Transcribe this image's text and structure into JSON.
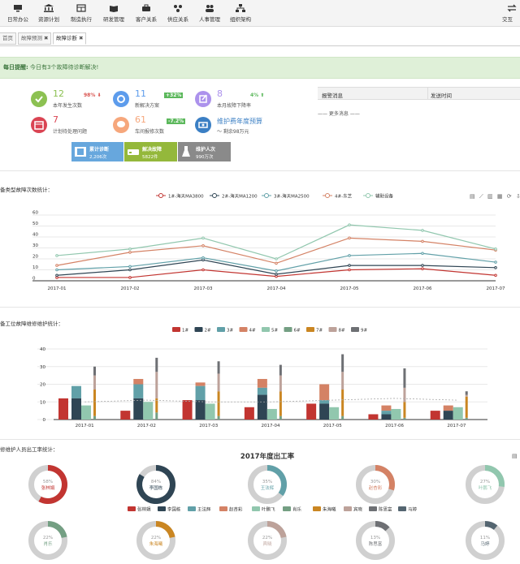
{
  "nav": [
    {
      "label": "日常办公",
      "icon": "monitor-icon"
    },
    {
      "label": "资源计划",
      "icon": "bank-icon"
    },
    {
      "label": "制造执行",
      "icon": "factory-icon"
    },
    {
      "label": "研发管理",
      "icon": "book-icon"
    },
    {
      "label": "客户关系",
      "icon": "briefcase-icon"
    },
    {
      "label": "供应关系",
      "icon": "network-icon"
    },
    {
      "label": "人事管理",
      "icon": "users-icon"
    },
    {
      "label": "组织架构",
      "icon": "org-chart-icon"
    },
    {
      "label": "交互",
      "icon": "swap-icon"
    }
  ],
  "tabs": [
    {
      "label": "首页",
      "closable": false
    },
    {
      "label": "故障预测",
      "closable": true
    },
    {
      "label": "故障诊断",
      "closable": true
    }
  ],
  "alert": {
    "prefix": "每日提醒:",
    "text": "今日有3个故障待诊断解决!"
  },
  "stats": [
    {
      "value": "12",
      "label": "本年发生次数",
      "badge": "98%",
      "badge_color": "#d9534f",
      "arrow": "down",
      "color": "#8cc152",
      "icon": "checklist-icon"
    },
    {
      "value": "11",
      "label": "新解决方案",
      "badge": "+32%",
      "badge_color": "#5cb85c",
      "arrow": "none",
      "color": "#5d9cec",
      "icon": "gears-icon"
    },
    {
      "value": "8",
      "label": "本月故障下降率",
      "badge": "4%",
      "badge_color": "#5cb85c",
      "arrow": "up",
      "color": "#ac92ec",
      "icon": "edit-icon"
    },
    {
      "value": "7",
      "label": "计划待处理问题",
      "badge": "",
      "badge_color": "",
      "arrow": "none",
      "color": "#da4453",
      "icon": "calendar-icon"
    },
    {
      "value": "61",
      "label": "车间报修次数",
      "badge": "-7.2%",
      "badge_color": "#5cb85c",
      "arrow": "none",
      "color": "#f6a77c",
      "icon": "chat-icon"
    },
    {
      "value": "维护费年度预算",
      "label": "～ 剩余98万元",
      "badge": "",
      "badge_color": "",
      "arrow": "none",
      "color": "#3b7fc4",
      "icon": "budget-icon"
    }
  ],
  "tiles": [
    {
      "title": "累计诊断",
      "value": "2,206次",
      "color": "#67a7dd",
      "icon": "film-icon"
    },
    {
      "title": "解决故障",
      "value": "5822件",
      "color": "#94b83b",
      "icon": "drive-icon"
    },
    {
      "title": "维护人次",
      "value": "990万次",
      "color": "#8a8a8a",
      "icon": "flask-icon"
    }
  ],
  "messages": {
    "col1": "报警消息",
    "col2": "发送时间",
    "more": "—— 更多消息 ——"
  },
  "line_section_title": "备类型故障次数统计：",
  "bar_section_title": "备工位故障维修维护统计：",
  "donut_section_title": "修维护人员出工率统计：",
  "toolbox": [
    "data-view-icon",
    "line-icon",
    "bar-icon",
    "stack-icon",
    "restore-icon",
    "save-icon"
  ],
  "chart_data": [
    {
      "type": "line",
      "categories": [
        "2017-01",
        "2017-02",
        "2017-03",
        "2017-04",
        "2017-05",
        "2017-06",
        "2017-07"
      ],
      "ylim": [
        0,
        60
      ],
      "yticks": [
        0,
        10,
        20,
        30,
        40,
        50,
        60
      ],
      "legend": "top-center",
      "series": [
        {
          "name": "1#-海天MA3800",
          "color": "#c23531",
          "values": [
            3,
            3,
            10,
            4,
            10,
            11,
            5
          ]
        },
        {
          "name": "2#-海天MA1200",
          "color": "#2f4554",
          "values": [
            5,
            10,
            19,
            6,
            14,
            14,
            12
          ]
        },
        {
          "name": "3#-海天MA2500",
          "color": "#61a0a8",
          "values": [
            10,
            13,
            21,
            9,
            23,
            25,
            17
          ]
        },
        {
          "name": "4#-东芝",
          "color": "#d48265",
          "values": [
            14,
            26,
            32,
            16,
            39,
            36,
            28
          ]
        },
        {
          "name": "辅助设备",
          "color": "#91c7ae",
          "values": [
            23,
            29,
            39,
            20,
            51,
            46,
            29
          ]
        }
      ]
    },
    {
      "type": "bar",
      "categories": [
        "2017-01",
        "2017-02",
        "2017-03",
        "2017-04",
        "2017-05",
        "2017-06",
        "2017-07"
      ],
      "ylim": [
        0,
        40
      ],
      "yticks": [
        0,
        10,
        20,
        30,
        40
      ],
      "legend": "top-center",
      "group_a": {
        "series": [
          {
            "name": "1#",
            "color": "#c23531",
            "values": [
              12,
              5,
              11,
              7,
              9,
              3,
              5
            ]
          },
          {
            "name": "2#",
            "color": "#2f4554",
            "values": [
              12,
              12,
              11,
              14,
              9,
              3,
              5
            ]
          },
          {
            "name": "3#",
            "color": "#61a0a8",
            "stack_top": [
              19,
              20,
              19,
              18,
              11,
              5,
              5
            ]
          },
          {
            "name": "4#",
            "color": "#d48265",
            "stack_top": [
              19,
              23,
              21,
              23,
              20,
              8,
              8
            ]
          }
        ]
      },
      "group_b": {
        "series": [
          {
            "name": "5#",
            "color": "#91c7ae",
            "values": [
              8,
              10,
              9,
              6,
              7,
              6,
              7
            ]
          }
        ]
      },
      "group_c": {
        "series": [
          {
            "name": "6#",
            "color": "#749f83",
            "values": [
              2,
              4,
              2,
              2,
              2,
              1,
              1
            ]
          },
          {
            "name": "7#",
            "color": "#ca8622",
            "values": [
              17,
              12,
              16,
              16,
              17,
              10,
              13
            ]
          },
          {
            "name": "8#",
            "color": "#bda29a",
            "values": [
              25,
              27,
              26,
              25,
              27,
              18,
              14
            ]
          },
          {
            "name": "9#",
            "color": "#6e7074",
            "values": [
              30,
              35,
              33,
              31,
              37,
              29,
              16
            ]
          }
        ]
      },
      "trend_values": [
        10,
        11,
        10,
        10,
        11,
        12,
        11
      ]
    },
    {
      "type": "pie",
      "title": "2017年度出工率",
      "legend": "center",
      "slices": [
        {
          "name": "张林娟",
          "value": 58,
          "color": "#c23531"
        },
        {
          "name": "李国栋",
          "value": 84,
          "color": "#2f4554"
        },
        {
          "name": "王法辉",
          "value": 35,
          "color": "#61a0a8"
        },
        {
          "name": "赵杏彩",
          "value": 30,
          "color": "#d48265"
        },
        {
          "name": "叶鹏飞",
          "value": 27,
          "color": "#91c7ae"
        },
        {
          "name": "肖乐",
          "value": 22,
          "color": "#749f83"
        },
        {
          "name": "朱海曦",
          "value": 22,
          "color": "#ca8622"
        },
        {
          "name": "宾晓",
          "value": 22,
          "color": "#bda29a"
        },
        {
          "name": "陈思富",
          "value": 13,
          "color": "#6e7074"
        },
        {
          "name": "马婷",
          "value": 11,
          "color": "#546570"
        }
      ]
    }
  ]
}
